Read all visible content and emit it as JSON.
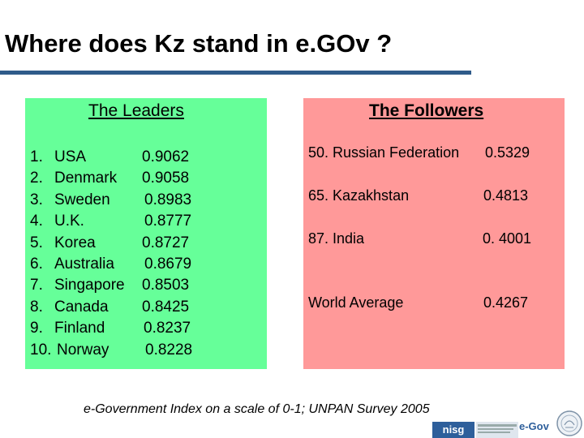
{
  "title": "Where does Kz stand in e.GOv ?",
  "leaders": {
    "heading": "The Leaders",
    "items": [
      {
        "rank": "1.",
        "country": "USA",
        "score": "0.9062"
      },
      {
        "rank": "2.",
        "country": "Denmark",
        "score": "0.9058"
      },
      {
        "rank": "3.",
        "country": "Sweden",
        "score": "0.8983"
      },
      {
        "rank": "4.",
        "country": "U.K.",
        "score": "0.8777"
      },
      {
        "rank": "5.",
        "country": "Korea",
        "score": "0.8727"
      },
      {
        "rank": "6.",
        "country": "Australia",
        "score": "0.8679"
      },
      {
        "rank": "7.",
        "country": "Singapore",
        "score": "0.8503"
      },
      {
        "rank": "8.",
        "country": "Canada",
        "score": "0.8425"
      },
      {
        "rank": "9.",
        "country": "Finland",
        "score": "0.8237"
      },
      {
        "rank": "10.",
        "country": "Norway",
        "score": "0.8228"
      }
    ]
  },
  "followers": {
    "heading": "The Followers",
    "items": [
      {
        "name": "50. Russian Federation",
        "score": "0.5329"
      },
      {
        "name": "65. Kazakhstan",
        "score": "0.4813"
      },
      {
        "name": "87. India",
        "score": "0. 4001"
      },
      {
        "name": "World Average",
        "score": "0.4267"
      }
    ]
  },
  "caption": "e-Government Index on a scale of 0-1; UNPAN Survey 2005",
  "logos": {
    "nisg": "nisg",
    "egov": "e-Gov"
  },
  "colors": {
    "leaders_bg": "#66ff99",
    "followers_bg": "#ff9999",
    "title_rule": "#2f5b8a"
  }
}
